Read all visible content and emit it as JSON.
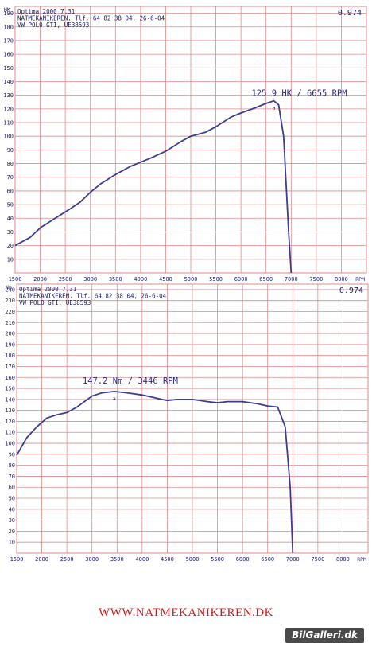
{
  "chart_data": [
    {
      "type": "line",
      "unit": "HK",
      "correction": "0.974",
      "header": [
        "Optima 2000 7.31",
        "NATMEKANIKEREN. Tlf. 64 82 38 04, 26-6-04",
        "VW POLO GTI, UE38593"
      ],
      "xlabel": "RPM",
      "xlim": [
        1500,
        8500
      ],
      "ylim": [
        0,
        195
      ],
      "x_ticks": [
        1500,
        2000,
        2500,
        3000,
        3500,
        4000,
        4500,
        5000,
        5500,
        6000,
        6500,
        7000,
        7500,
        8000
      ],
      "y_ticks": [
        10,
        20,
        30,
        40,
        50,
        60,
        70,
        80,
        90,
        100,
        110,
        120,
        130,
        140,
        150,
        160,
        170,
        180,
        190
      ],
      "peak_label": "125.9 HK / 6655 RPM",
      "peak_point": [
        6655,
        125.9
      ],
      "peak_marker": "a",
      "series": [
        {
          "x": [
            1500,
            1800,
            2000,
            2300,
            2600,
            2800,
            3000,
            3200,
            3500,
            3800,
            4000,
            4200,
            4500,
            4800,
            5000,
            5300,
            5500,
            5800,
            6000,
            6300,
            6500,
            6655,
            6750,
            6850,
            6950,
            7000
          ],
          "y": [
            20,
            26,
            33,
            40,
            47,
            52,
            59,
            65,
            72,
            78,
            81,
            84,
            89,
            96,
            100,
            103,
            107,
            114,
            117,
            121,
            124,
            125.9,
            123,
            100,
            30,
            0
          ]
        }
      ]
    },
    {
      "type": "line",
      "unit": "Nm",
      "correction": "0.974",
      "header": [
        "Optima 2000 7.31",
        "NATMEKANIKEREN. Tlf. 64 82 38 04, 26-6-04",
        "VW POLO GTI, UE38593"
      ],
      "xlabel": "RPM",
      "xlim": [
        1500,
        8500
      ],
      "ylim": [
        0,
        245
      ],
      "x_ticks": [
        1500,
        2000,
        2500,
        3000,
        3500,
        4000,
        4500,
        5000,
        5500,
        6000,
        6500,
        7000,
        7500,
        8000
      ],
      "y_ticks": [
        10,
        20,
        30,
        40,
        50,
        60,
        70,
        80,
        90,
        100,
        110,
        120,
        130,
        140,
        150,
        160,
        170,
        180,
        190,
        200,
        210,
        220,
        230,
        240
      ],
      "peak_label": "147.2 Nm / 3446 RPM",
      "peak_point": [
        3446,
        147.2
      ],
      "peak_marker": "a",
      "series": [
        {
          "x": [
            1500,
            1700,
            1900,
            2100,
            2300,
            2500,
            2700,
            3000,
            3200,
            3446,
            3700,
            4000,
            4300,
            4500,
            4700,
            5000,
            5300,
            5500,
            5700,
            6000,
            6300,
            6500,
            6700,
            6850,
            6950,
            7000
          ],
          "y": [
            89,
            105,
            115,
            123,
            126,
            128,
            133,
            143,
            146,
            147.2,
            146,
            144,
            141,
            139,
            140,
            140,
            138,
            137,
            138,
            138,
            136,
            134,
            133,
            115,
            60,
            0
          ]
        }
      ]
    }
  ],
  "footer": "WWW.NATMEKANIKEREN.DK",
  "watermark": "BilGalleri.dk",
  "colors": {
    "grid": "#e08a8a",
    "curve": "#3d3d8f",
    "text": "#1a1a66",
    "footer": "#d21a1a"
  }
}
